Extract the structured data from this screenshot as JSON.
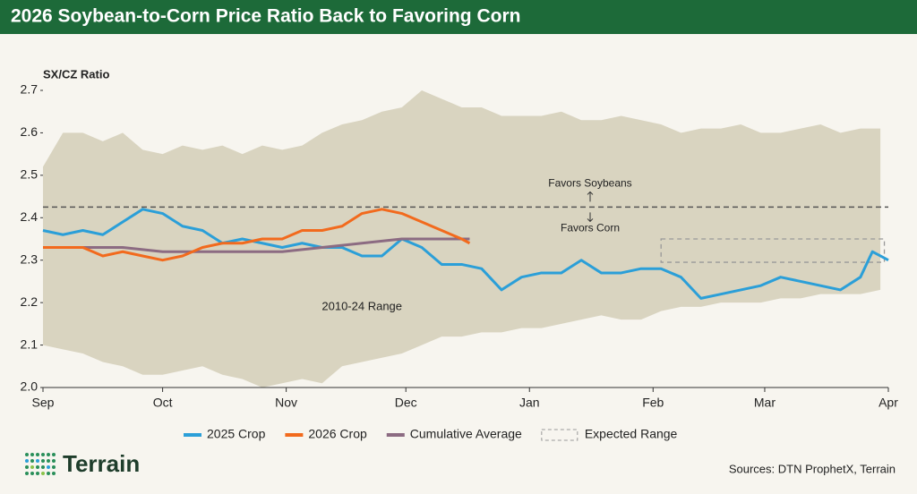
{
  "chart_data": {
    "type": "line",
    "title": "2026 Soybean-to-Corn Price Ratio Back to Favoring Corn",
    "y_label": "SX/CZ Ratio",
    "xlim": [
      0,
      212
    ],
    "xticks": [
      {
        "value": 0,
        "label": "Sep"
      },
      {
        "value": 30,
        "label": "Oct"
      },
      {
        "value": 61,
        "label": "Nov"
      },
      {
        "value": 91,
        "label": "Dec"
      },
      {
        "value": 122,
        "label": "Jan"
      },
      {
        "value": 153,
        "label": "Feb"
      },
      {
        "value": 181,
        "label": "Mar"
      },
      {
        "value": 212,
        "label": "Apr"
      }
    ],
    "ylim": [
      2.0,
      2.7
    ],
    "yticks": [
      {
        "value": 2,
        "label": "2.0"
      },
      2.1,
      2.2,
      2.3,
      2.4,
      2.5,
      2.6,
      2.7
    ],
    "band": {
      "label": "2010-24 Range",
      "color": "#d9d4c0",
      "x": [
        0,
        5,
        10,
        15,
        20,
        25,
        30,
        35,
        40,
        45,
        50,
        55,
        60,
        65,
        70,
        75,
        80,
        85,
        90,
        95,
        100,
        105,
        110,
        115,
        120,
        125,
        130,
        135,
        140,
        145,
        150,
        155,
        160,
        165,
        170,
        175,
        180,
        185,
        190,
        195,
        200,
        205,
        210
      ],
      "upper": [
        2.52,
        2.6,
        2.6,
        2.58,
        2.6,
        2.56,
        2.55,
        2.57,
        2.56,
        2.57,
        2.55,
        2.57,
        2.56,
        2.57,
        2.6,
        2.62,
        2.63,
        2.65,
        2.66,
        2.7,
        2.68,
        2.66,
        2.66,
        2.64,
        2.64,
        2.64,
        2.65,
        2.63,
        2.63,
        2.64,
        2.63,
        2.62,
        2.6,
        2.61,
        2.61,
        2.62,
        2.6,
        2.6,
        2.61,
        2.62,
        2.6,
        2.61,
        2.61
      ],
      "lower": [
        2.1,
        2.09,
        2.08,
        2.06,
        2.05,
        2.03,
        2.03,
        2.04,
        2.05,
        2.03,
        2.02,
        2.0,
        2.01,
        2.02,
        2.01,
        2.05,
        2.06,
        2.07,
        2.08,
        2.1,
        2.12,
        2.12,
        2.13,
        2.13,
        2.14,
        2.14,
        2.15,
        2.16,
        2.17,
        2.16,
        2.16,
        2.18,
        2.19,
        2.19,
        2.2,
        2.2,
        2.2,
        2.21,
        2.21,
        2.22,
        2.22,
        2.22,
        2.23
      ]
    },
    "reference_line": 2.425,
    "annotations": [
      "Favors Soybeans",
      "Favors Corn"
    ],
    "expected_range": {
      "name": "Expected Range",
      "xlim": [
        155,
        211
      ],
      "ylim": [
        2.295,
        2.35
      ]
    },
    "series": [
      {
        "name": "2025 Crop",
        "color": "#2b9fd8",
        "x": [
          0,
          5,
          10,
          15,
          20,
          25,
          30,
          35,
          40,
          45,
          50,
          55,
          60,
          65,
          70,
          75,
          80,
          85,
          90,
          95,
          100,
          105,
          110,
          115,
          120,
          125,
          130,
          135,
          140,
          145,
          150,
          155,
          160,
          165,
          170,
          175,
          180,
          185,
          190,
          195,
          200,
          205,
          208,
          212
        ],
        "values": [
          2.37,
          2.36,
          2.37,
          2.36,
          2.39,
          2.42,
          2.41,
          2.38,
          2.37,
          2.34,
          2.35,
          2.34,
          2.33,
          2.34,
          2.33,
          2.33,
          2.31,
          2.31,
          2.35,
          2.33,
          2.29,
          2.29,
          2.28,
          2.23,
          2.26,
          2.27,
          2.27,
          2.3,
          2.27,
          2.27,
          2.28,
          2.28,
          2.26,
          2.21,
          2.22,
          2.23,
          2.24,
          2.26,
          2.25,
          2.24,
          2.23,
          2.26,
          2.32,
          2.3
        ]
      },
      {
        "name": "2026 Crop",
        "color": "#f26a1d",
        "x": [
          0,
          5,
          10,
          15,
          20,
          25,
          30,
          35,
          40,
          45,
          50,
          55,
          60,
          65,
          70,
          75,
          80,
          85,
          90,
          95,
          100,
          105,
          107
        ],
        "values": [
          2.33,
          2.33,
          2.33,
          2.31,
          2.32,
          2.31,
          2.3,
          2.31,
          2.33,
          2.34,
          2.34,
          2.35,
          2.35,
          2.37,
          2.37,
          2.38,
          2.41,
          2.42,
          2.41,
          2.39,
          2.37,
          2.35,
          2.34
        ]
      },
      {
        "name": "Cumulative Average",
        "color": "#8c6b82",
        "x": [
          0,
          20,
          30,
          40,
          50,
          60,
          70,
          80,
          90,
          100,
          107
        ],
        "values": [
          2.33,
          2.33,
          2.32,
          2.32,
          2.32,
          2.32,
          2.33,
          2.34,
          2.35,
          2.35,
          2.35
        ]
      }
    ],
    "logo": "Terrain",
    "source": "Sources: DTN ProphetX, Terrain"
  }
}
